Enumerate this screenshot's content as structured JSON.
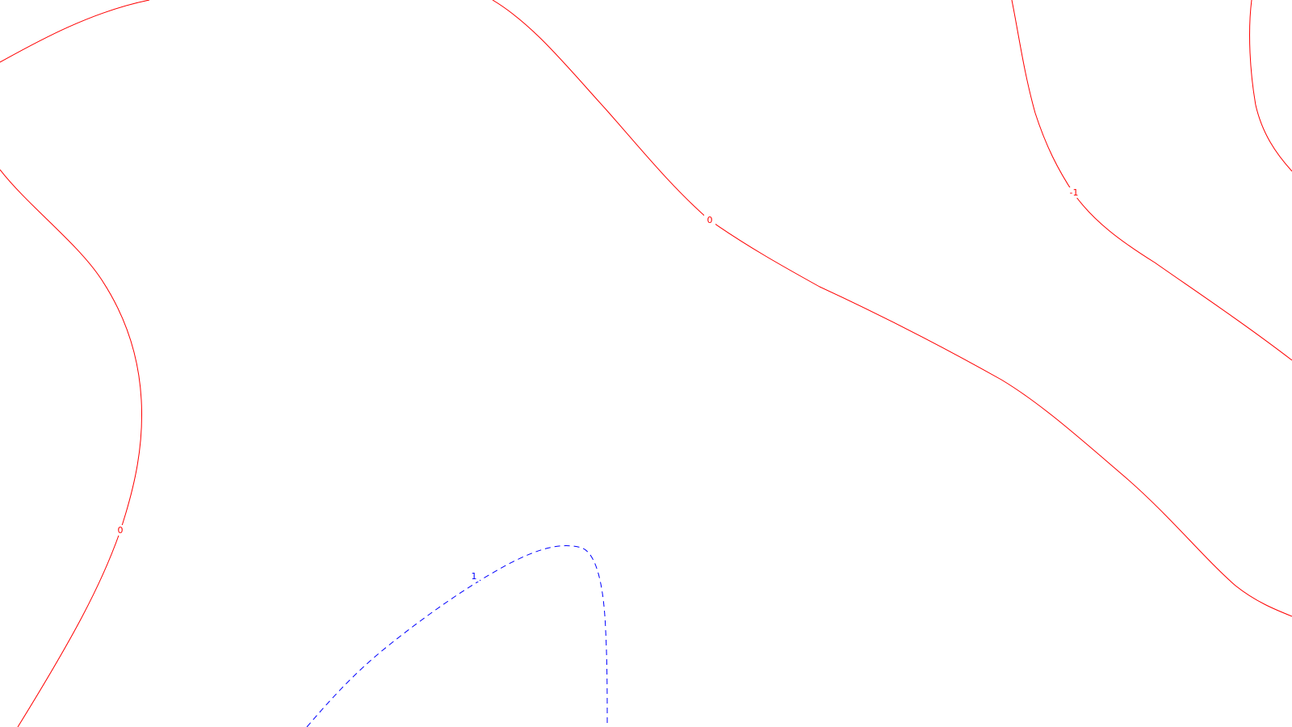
{
  "map": {
    "background_color": "#ffffff",
    "contours": [
      {
        "id": "contour-zero-left-top",
        "level": "0",
        "color": "#ff0000",
        "style": "solid",
        "label": ""
      },
      {
        "id": "contour-zero-left",
        "level": "0",
        "color": "#ff0000",
        "style": "solid",
        "label": "0"
      },
      {
        "id": "contour-zero-main",
        "level": "0",
        "color": "#ff0000",
        "style": "solid",
        "label": "0"
      },
      {
        "id": "contour-minus-one",
        "level": "-1",
        "color": "#ff0000",
        "style": "solid",
        "label": "-1"
      },
      {
        "id": "contour-minus-one-corner",
        "level": "-1",
        "color": "#ff0000",
        "style": "solid",
        "label": ""
      },
      {
        "id": "contour-one",
        "level": "1",
        "color": "#0000ff",
        "style": "dashed",
        "label": "1"
      }
    ]
  }
}
